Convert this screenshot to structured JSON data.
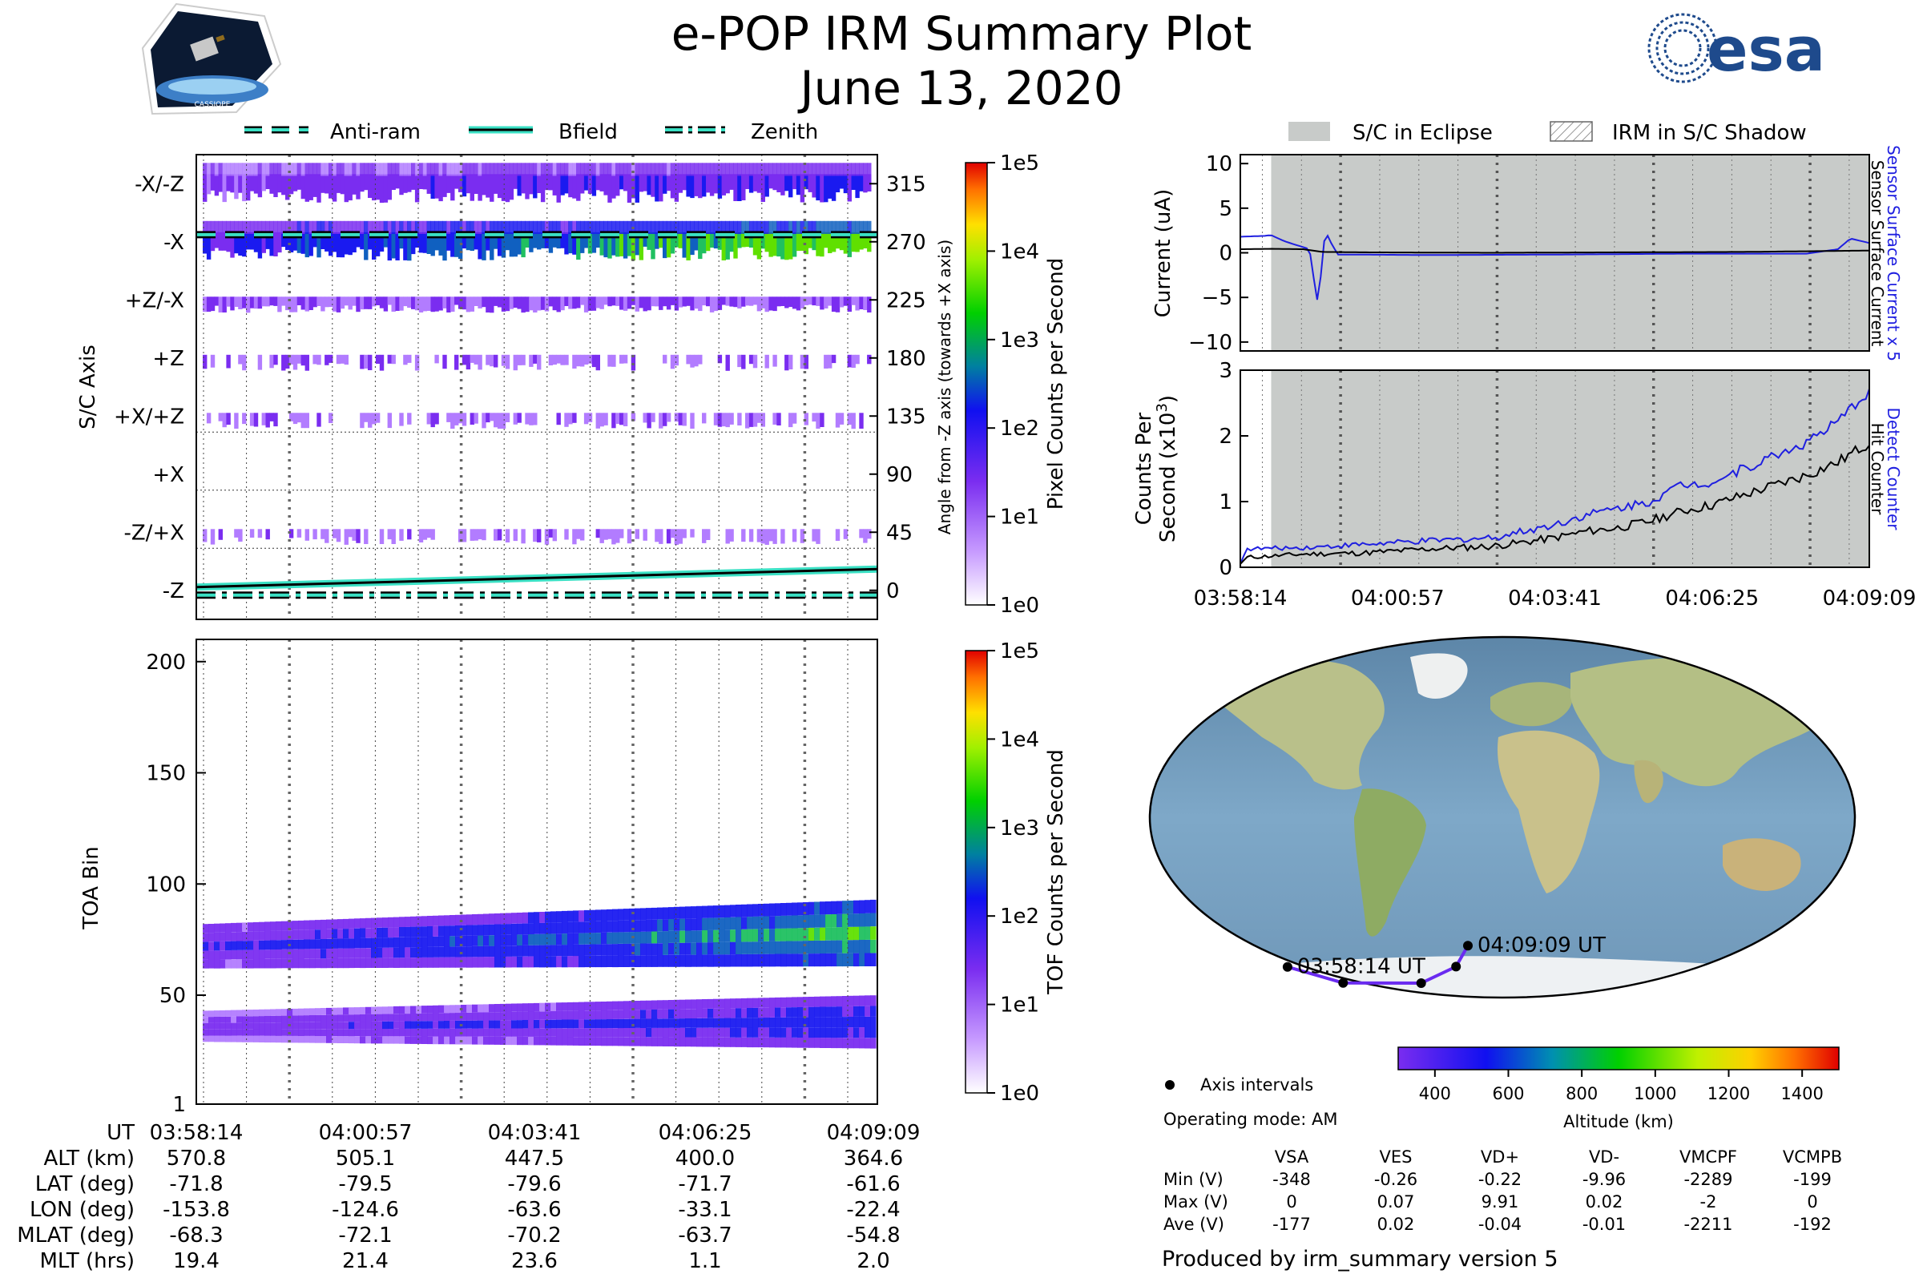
{
  "header": {
    "title": "e-POP IRM Summary Plot",
    "date": "June 13, 2020",
    "logo_left_text": "CASSIOPE",
    "logo_right_text": "esa"
  },
  "legends": {
    "direction": [
      "Anti-ram",
      "Bfield",
      "Zenith"
    ],
    "shadow": [
      "S/C in Eclipse",
      "IRM in S/C Shadow"
    ]
  },
  "colors": {
    "teal": "#3ae0c4",
    "eclipse": "#c8cbc9",
    "detect": "#1f1fe0",
    "orbit": "#6a2bf0"
  },
  "chart_data": [
    {
      "type": "heatmap",
      "name": "sc-axis-panel",
      "ylabel": "S/C Axis",
      "ylabel_right": "Angle from -Z axis (towards +X axis)",
      "left_ticks": [
        "-X/-Z",
        "-X",
        "+Z/-X",
        "+Z",
        "+X/+Z",
        "+X",
        "-Z/+X",
        "-Z"
      ],
      "right_ticks": [
        "315",
        "270",
        "225",
        "180",
        "135",
        "90",
        "45",
        "0"
      ],
      "ylim": [
        -22.5,
        337.5
      ],
      "colorbar": {
        "label": "Pixel Counts per Second",
        "ticks": [
          "1e5",
          "1e4",
          "1e3",
          "1e2",
          "1e1",
          "1e0"
        ]
      },
      "bands": [
        {
          "angle": 315,
          "level": 0.25
        },
        {
          "angle": 270,
          "level": 0.45
        },
        {
          "angle": 225,
          "level": 0.18
        },
        {
          "angle": 180,
          "level": 0.15
        },
        {
          "angle": 135,
          "level": 0.1
        },
        {
          "angle": 45,
          "level": 0.08
        }
      ],
      "series": [
        {
          "name": "Anti-ram",
          "angle": [
            278,
            278
          ]
        },
        {
          "name": "Bfield",
          "angle": [
            0,
            14
          ]
        },
        {
          "name": "Zenith",
          "angle": [
            0,
            0
          ]
        }
      ]
    },
    {
      "type": "heatmap",
      "name": "toa-panel",
      "ylabel": "TOA Bin",
      "yticks": [
        "200",
        "150",
        "100",
        "50",
        "1"
      ],
      "ylim": [
        1,
        210
      ],
      "colorbar": {
        "label": "TOF Counts per Second",
        "ticks": [
          "1e5",
          "1e4",
          "1e3",
          "1e2",
          "1e1",
          "1e0"
        ]
      },
      "bands": [
        {
          "center": [
            72,
            78
          ],
          "halfwidth": 10
        },
        {
          "center": [
            36,
            38
          ],
          "halfwidth": 7
        }
      ]
    },
    {
      "type": "line",
      "name": "current-panel",
      "ylabel": "Current (uA)",
      "yticks": [
        "10",
        "5",
        "0",
        "−5",
        "−10"
      ],
      "ylim": [
        -11,
        11
      ],
      "right_label_1": "Sensor Surface Current x 5",
      "right_label_2": "Sensor Surface Current",
      "eclipse_from": 0.049,
      "series": [
        {
          "name": "Sensor Surface Current x 5",
          "color": "#1f1fe0",
          "x": [
            0,
            0.04,
            0.048,
            0.07,
            0.11,
            0.118,
            0.124,
            0.128,
            0.135,
            0.145,
            0.155,
            0.18,
            0.3,
            0.5,
            0.7,
            0.9,
            0.95,
            0.97,
            1.0
          ],
          "y": [
            1.8,
            1.9,
            2.0,
            1.3,
            0.4,
            -3.5,
            -6.0,
            -2.5,
            2.5,
            1.0,
            -0.2,
            -0.2,
            -0.25,
            -0.2,
            -0.1,
            -0.1,
            0.4,
            1.6,
            1.1
          ]
        },
        {
          "name": "Sensor Surface Current",
          "color": "#000000",
          "x": [
            0,
            0.05,
            0.1,
            0.13,
            0.2,
            0.4,
            0.6,
            0.8,
            1.0
          ],
          "y": [
            0.4,
            0.45,
            0.4,
            0.1,
            0.05,
            0.0,
            0.05,
            0.1,
            0.25
          ]
        }
      ]
    },
    {
      "type": "line",
      "name": "counts-panel",
      "ylabel": "Counts Per Second (x10^3)",
      "yticks": [
        "3",
        "2",
        "1",
        "0"
      ],
      "ylim": [
        0,
        3
      ],
      "right_label_1": "Detect Counter",
      "right_label_2": "Hit Counter",
      "eclipse_from": 0.049,
      "xticks": [
        "03:58:14",
        "04:00:57",
        "04:03:41",
        "04:06:25",
        "04:09:09"
      ],
      "series": [
        {
          "name": "Detect Counter",
          "color": "#1f1fe0",
          "x": [
            0,
            0.01,
            0.1,
            0.2,
            0.3,
            0.4,
            0.45,
            0.5,
            0.55,
            0.6,
            0.65,
            0.7,
            0.75,
            0.8,
            0.85,
            0.9,
            0.95,
            1.0
          ],
          "y": [
            0.05,
            0.28,
            0.3,
            0.35,
            0.4,
            0.45,
            0.55,
            0.65,
            0.8,
            0.9,
            1.0,
            1.25,
            1.3,
            1.5,
            1.7,
            1.9,
            2.2,
            2.7
          ]
        },
        {
          "name": "Hit Counter",
          "color": "#000000",
          "x": [
            0,
            0.01,
            0.1,
            0.2,
            0.3,
            0.4,
            0.45,
            0.5,
            0.55,
            0.6,
            0.65,
            0.7,
            0.75,
            0.8,
            0.85,
            0.9,
            0.95,
            1.0
          ],
          "y": [
            0.05,
            0.15,
            0.2,
            0.22,
            0.28,
            0.32,
            0.38,
            0.45,
            0.55,
            0.6,
            0.7,
            0.85,
            0.95,
            1.1,
            1.25,
            1.4,
            1.6,
            1.9
          ]
        }
      ]
    },
    {
      "type": "scatter",
      "name": "orbit-map",
      "orbit_points": [
        {
          "label": "03:58:14 UT",
          "lon": -153.8,
          "lat": -71.8
        },
        {
          "label": "",
          "lon": -124.6,
          "lat": -79.5
        },
        {
          "label": "",
          "lon": -63.6,
          "lat": -79.6
        },
        {
          "label": "",
          "lon": -33.1,
          "lat": -71.7
        },
        {
          "label": "04:09:09 UT",
          "lon": -22.4,
          "lat": -61.6
        }
      ],
      "axis_intervals_label": "Axis intervals",
      "colorbar": {
        "label": "Altitude (km)",
        "ticks": [
          "400",
          "600",
          "800",
          "1000",
          "1200",
          "1400"
        ],
        "range": [
          300,
          1500
        ]
      }
    }
  ],
  "xaxis": {
    "times": [
      "03:58:14",
      "04:00:57",
      "04:03:41",
      "04:06:25",
      "04:09:09"
    ]
  },
  "ephemeris": {
    "rows": [
      {
        "label": "UT",
        "values": [
          "03:58:14",
          "04:00:57",
          "04:03:41",
          "04:06:25",
          "04:09:09"
        ]
      },
      {
        "label": "ALT (km)",
        "values": [
          "570.8",
          "505.1",
          "447.5",
          "400.0",
          "364.6"
        ]
      },
      {
        "label": "LAT (deg)",
        "values": [
          "-71.8",
          "-79.5",
          "-79.6",
          "-71.7",
          "-61.6"
        ]
      },
      {
        "label": "LON (deg)",
        "values": [
          "-153.8",
          "-124.6",
          "-63.6",
          "-33.1",
          "-22.4"
        ]
      },
      {
        "label": "MLAT (deg)",
        "values": [
          "-68.3",
          "-72.1",
          "-70.2",
          "-63.7",
          "-54.8"
        ]
      },
      {
        "label": "MLT (hrs)",
        "values": [
          "19.4",
          "21.4",
          "23.6",
          "1.1",
          "2.0"
        ]
      }
    ]
  },
  "operating_mode": "Operating mode: AM",
  "voltage_table": {
    "headers": [
      "VSA",
      "VES",
      "VD+",
      "VD-",
      "VMCPF",
      "VCMPB"
    ],
    "rows": [
      {
        "label": "Min (V)",
        "values": [
          "-348",
          "-0.26",
          "-0.22",
          "-9.96",
          "-2289",
          "-199"
        ]
      },
      {
        "label": "Max (V)",
        "values": [
          "0",
          "0.07",
          "9.91",
          "0.02",
          "-2",
          "0"
        ]
      },
      {
        "label": "Ave (V)",
        "values": [
          "-177",
          "0.02",
          "-0.04",
          "-0.01",
          "-2211",
          "-192"
        ]
      }
    ]
  },
  "footer": "Produced by irm_summary version 5"
}
